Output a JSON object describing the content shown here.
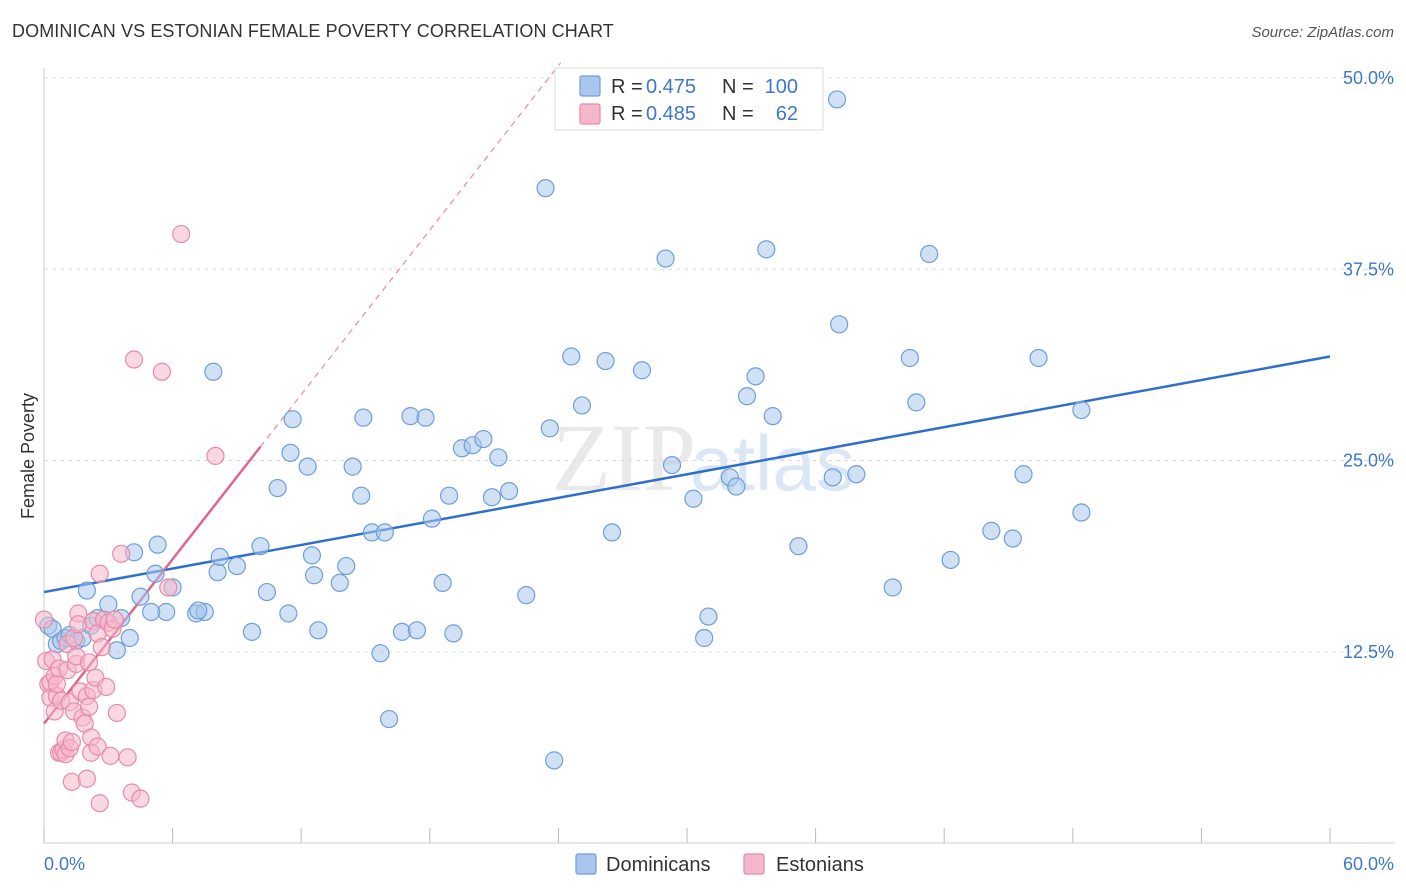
{
  "title": "DOMINICAN VS ESTONIAN FEMALE POVERTY CORRELATION CHART",
  "source": "Source: ZipAtlas.com",
  "watermark": {
    "part1": "ZIP",
    "part2": "atlas"
  },
  "colors": {
    "dominicans_fill": "#a9c7ec",
    "dominicans_stroke": "#6e9fd8",
    "dominicans_line": "#2f6fcc",
    "estonians_fill": "#f5b8cb",
    "estonians_stroke": "#e98aa8",
    "estonians_line": "#e0648c",
    "tick_text": "#3e78c8",
    "grid": "#dddddd"
  },
  "legend": {
    "rows": [
      {
        "r_label": "R =",
        "r_value": "0.475",
        "n_label": "N =",
        "n_value": "100"
      },
      {
        "r_label": "R =",
        "r_value": "0.485",
        "n_label": "N =",
        "n_value": "62"
      }
    ],
    "bottom": [
      "Dominicans",
      "Estonians"
    ]
  },
  "chart_data": {
    "type": "scatter",
    "title": "DOMINICAN VS ESTONIAN FEMALE POVERTY CORRELATION CHART",
    "xlabel": "",
    "ylabel": "Female Poverty",
    "xlim": [
      0,
      60
    ],
    "ylim": [
      0,
      50
    ],
    "x_tick_labels": [
      "0.0%",
      "60.0%"
    ],
    "y_ticks": [
      12.5,
      25.0,
      37.5,
      50.0
    ],
    "y_tick_labels": [
      "12.5%",
      "25.0%",
      "37.5%",
      "50.0%"
    ],
    "grid": true,
    "legend_position": "top-center",
    "series": [
      {
        "name": "Dominicans",
        "r": 0.475,
        "n": 100,
        "trend": {
          "x": [
            0,
            60
          ],
          "y": [
            16.4,
            31.8
          ]
        },
        "points": [
          [
            0.2,
            14.2
          ],
          [
            0.4,
            14.0
          ],
          [
            0.6,
            13.0
          ],
          [
            0.8,
            13.2
          ],
          [
            1.0,
            13.4
          ],
          [
            1.2,
            13.6
          ],
          [
            1.5,
            13.2
          ],
          [
            1.8,
            13.4
          ],
          [
            2.0,
            16.5
          ],
          [
            2.2,
            14.2
          ],
          [
            2.5,
            14.7
          ],
          [
            3.0,
            15.6
          ],
          [
            3.4,
            12.6
          ],
          [
            3.6,
            14.7
          ],
          [
            4.0,
            13.4
          ],
          [
            4.2,
            19.0
          ],
          [
            4.5,
            16.1
          ],
          [
            5.7,
            15.1
          ],
          [
            5.0,
            15.1
          ],
          [
            5.2,
            17.6
          ],
          [
            5.3,
            19.5
          ],
          [
            6.0,
            16.7
          ],
          [
            7.1,
            15.0
          ],
          [
            7.5,
            15.1
          ],
          [
            7.2,
            15.2
          ],
          [
            7.9,
            30.8
          ],
          [
            8.1,
            17.7
          ],
          [
            8.2,
            18.7
          ],
          [
            9.0,
            18.1
          ],
          [
            9.7,
            13.8
          ],
          [
            10.1,
            19.4
          ],
          [
            10.4,
            16.4
          ],
          [
            10.9,
            23.2
          ],
          [
            11.4,
            15.0
          ],
          [
            11.5,
            25.5
          ],
          [
            11.6,
            27.7
          ],
          [
            12.3,
            24.6
          ],
          [
            12.5,
            18.8
          ],
          [
            12.6,
            17.5
          ],
          [
            12.8,
            13.9
          ],
          [
            13.8,
            17.0
          ],
          [
            14.1,
            18.1
          ],
          [
            14.4,
            24.6
          ],
          [
            14.9,
            27.8
          ],
          [
            14.8,
            22.7
          ],
          [
            15.3,
            20.3
          ],
          [
            15.7,
            12.4
          ],
          [
            15.9,
            20.3
          ],
          [
            16.1,
            8.1
          ],
          [
            16.7,
            13.8
          ],
          [
            17.1,
            27.9
          ],
          [
            17.4,
            13.9
          ],
          [
            17.8,
            27.8
          ],
          [
            18.1,
            21.2
          ],
          [
            18.6,
            17.0
          ],
          [
            18.9,
            22.7
          ],
          [
            19.1,
            13.7
          ],
          [
            19.5,
            25.8
          ],
          [
            20.0,
            26.0
          ],
          [
            20.5,
            26.4
          ],
          [
            20.9,
            22.6
          ],
          [
            21.2,
            25.2
          ],
          [
            21.7,
            23.0
          ],
          [
            22.5,
            16.2
          ],
          [
            23.4,
            42.8
          ],
          [
            23.6,
            27.1
          ],
          [
            23.8,
            5.4
          ],
          [
            24.5,
            48.6
          ],
          [
            24.6,
            31.8
          ],
          [
            25.1,
            28.6
          ],
          [
            26.2,
            31.5
          ],
          [
            26.5,
            20.3
          ],
          [
            27.9,
            30.9
          ],
          [
            29.0,
            38.2
          ],
          [
            29.3,
            24.7
          ],
          [
            30.3,
            22.5
          ],
          [
            30.8,
            13.4
          ],
          [
            31.0,
            14.8
          ],
          [
            32.0,
            23.9
          ],
          [
            32.3,
            23.3
          ],
          [
            32.8,
            29.2
          ],
          [
            33.2,
            30.5
          ],
          [
            33.7,
            38.8
          ],
          [
            34.0,
            27.9
          ],
          [
            35.2,
            19.4
          ],
          [
            36.8,
            23.9
          ],
          [
            37.0,
            48.6
          ],
          [
            37.1,
            33.9
          ],
          [
            37.9,
            24.1
          ],
          [
            39.6,
            16.7
          ],
          [
            40.4,
            31.7
          ],
          [
            40.7,
            28.8
          ],
          [
            41.3,
            38.5
          ],
          [
            42.3,
            18.5
          ],
          [
            44.2,
            20.4
          ],
          [
            45.2,
            19.9
          ],
          [
            45.7,
            24.1
          ],
          [
            46.4,
            31.7
          ],
          [
            48.4,
            28.3
          ],
          [
            48.4,
            21.6
          ]
        ]
      },
      {
        "name": "Estonians",
        "r": 0.485,
        "n": 62,
        "trend": {
          "x": [
            0,
            10.1
          ],
          "y": [
            7.8,
            25.9
          ]
        },
        "points": [
          [
            0.0,
            14.6
          ],
          [
            0.1,
            11.9
          ],
          [
            0.2,
            10.4
          ],
          [
            0.3,
            10.5
          ],
          [
            0.3,
            9.5
          ],
          [
            0.4,
            12.0
          ],
          [
            0.5,
            8.6
          ],
          [
            0.5,
            10.9
          ],
          [
            0.6,
            9.6
          ],
          [
            0.6,
            10.4
          ],
          [
            0.7,
            11.4
          ],
          [
            0.7,
            5.9
          ],
          [
            0.8,
            9.3
          ],
          [
            0.8,
            5.9
          ],
          [
            0.9,
            6.1
          ],
          [
            1.0,
            5.8
          ],
          [
            1.0,
            6.7
          ],
          [
            1.1,
            13.0
          ],
          [
            1.1,
            11.3
          ],
          [
            1.2,
            9.2
          ],
          [
            1.2,
            6.2
          ],
          [
            1.3,
            6.6
          ],
          [
            1.3,
            4.0
          ],
          [
            1.4,
            13.4
          ],
          [
            1.4,
            8.6
          ],
          [
            1.5,
            11.7
          ],
          [
            1.5,
            12.2
          ],
          [
            1.6,
            15.0
          ],
          [
            1.6,
            14.3
          ],
          [
            1.7,
            9.9
          ],
          [
            1.8,
            8.2
          ],
          [
            1.9,
            7.8
          ],
          [
            2.0,
            4.2
          ],
          [
            2.0,
            9.6
          ],
          [
            2.1,
            8.9
          ],
          [
            2.1,
            11.8
          ],
          [
            2.2,
            6.9
          ],
          [
            2.2,
            5.9
          ],
          [
            2.3,
            10.0
          ],
          [
            2.3,
            14.5
          ],
          [
            2.4,
            10.8
          ],
          [
            2.5,
            13.7
          ],
          [
            2.5,
            6.3
          ],
          [
            2.6,
            17.6
          ],
          [
            2.6,
            2.6
          ],
          [
            2.7,
            12.8
          ],
          [
            2.8,
            14.6
          ],
          [
            2.9,
            10.2
          ],
          [
            3.0,
            14.4
          ],
          [
            3.1,
            5.7
          ],
          [
            3.2,
            14.0
          ],
          [
            3.3,
            14.6
          ],
          [
            3.4,
            8.5
          ],
          [
            3.6,
            18.9
          ],
          [
            3.9,
            5.6
          ],
          [
            4.1,
            3.3
          ],
          [
            4.2,
            31.6
          ],
          [
            4.5,
            2.9
          ],
          [
            5.5,
            30.8
          ],
          [
            5.8,
            16.7
          ],
          [
            6.4,
            39.8
          ],
          [
            8.0,
            25.3
          ]
        ]
      }
    ]
  }
}
